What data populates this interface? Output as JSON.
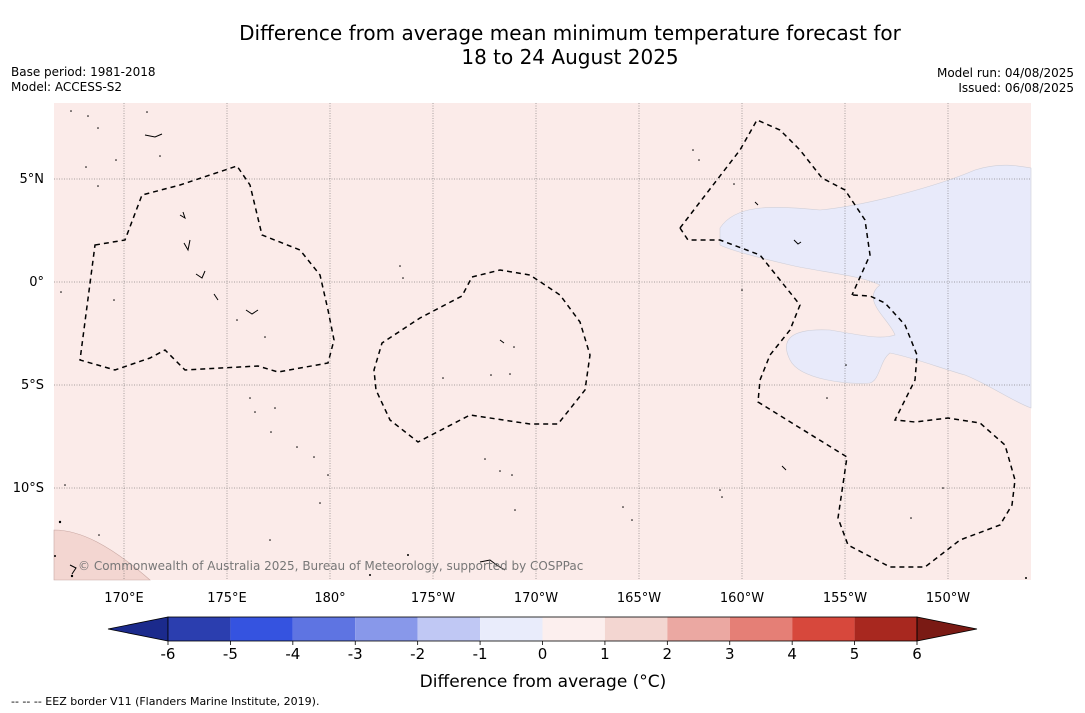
{
  "title": {
    "line1": "Difference from average mean minimum temperature forecast for",
    "line2": "18 to 24 August 2025"
  },
  "meta_left": {
    "base_period": "Base period: 1981-2018",
    "model": "Model: ACCESS-S2"
  },
  "meta_right": {
    "model_run": "Model run: 04/08/2025",
    "issued": "Issued: 06/08/2025"
  },
  "map": {
    "copyright": "© Commonwealth of Australia 2025, Bureau of Meteorology, supported by COSPPac",
    "lat_labels": [
      "5°N",
      "0°",
      "5°S",
      "10°S"
    ],
    "lon_labels": [
      "170°E",
      "175°E",
      "180°",
      "175°W",
      "170°W",
      "165°W",
      "160°W",
      "155°W",
      "150°W"
    ],
    "colors": {
      "background_anomaly": "#fbebe9",
      "negative_anomaly": "#e8eafa",
      "coastal_anomaly": "#f3d6d1"
    }
  },
  "colorbar": {
    "tick_labels": [
      "-6",
      "-5",
      "-4",
      "-3",
      "-2",
      "-1",
      "0",
      "1",
      "2",
      "3",
      "4",
      "5",
      "6"
    ],
    "colors": [
      "#1b2a8c",
      "#2b3eaf",
      "#3553e0",
      "#5e74e2",
      "#8898ea",
      "#c0c8f4",
      "#e9ecfb",
      "#fcefee",
      "#f3d6d1",
      "#eba8a2",
      "#e57f76",
      "#d7483c",
      "#a8281f",
      "#7a1a14"
    ],
    "label": "Difference from average (°C)"
  },
  "footer": {
    "eez_note": "--  --  -- EEZ border V11 (Flanders Marine Institute, 2019)."
  }
}
